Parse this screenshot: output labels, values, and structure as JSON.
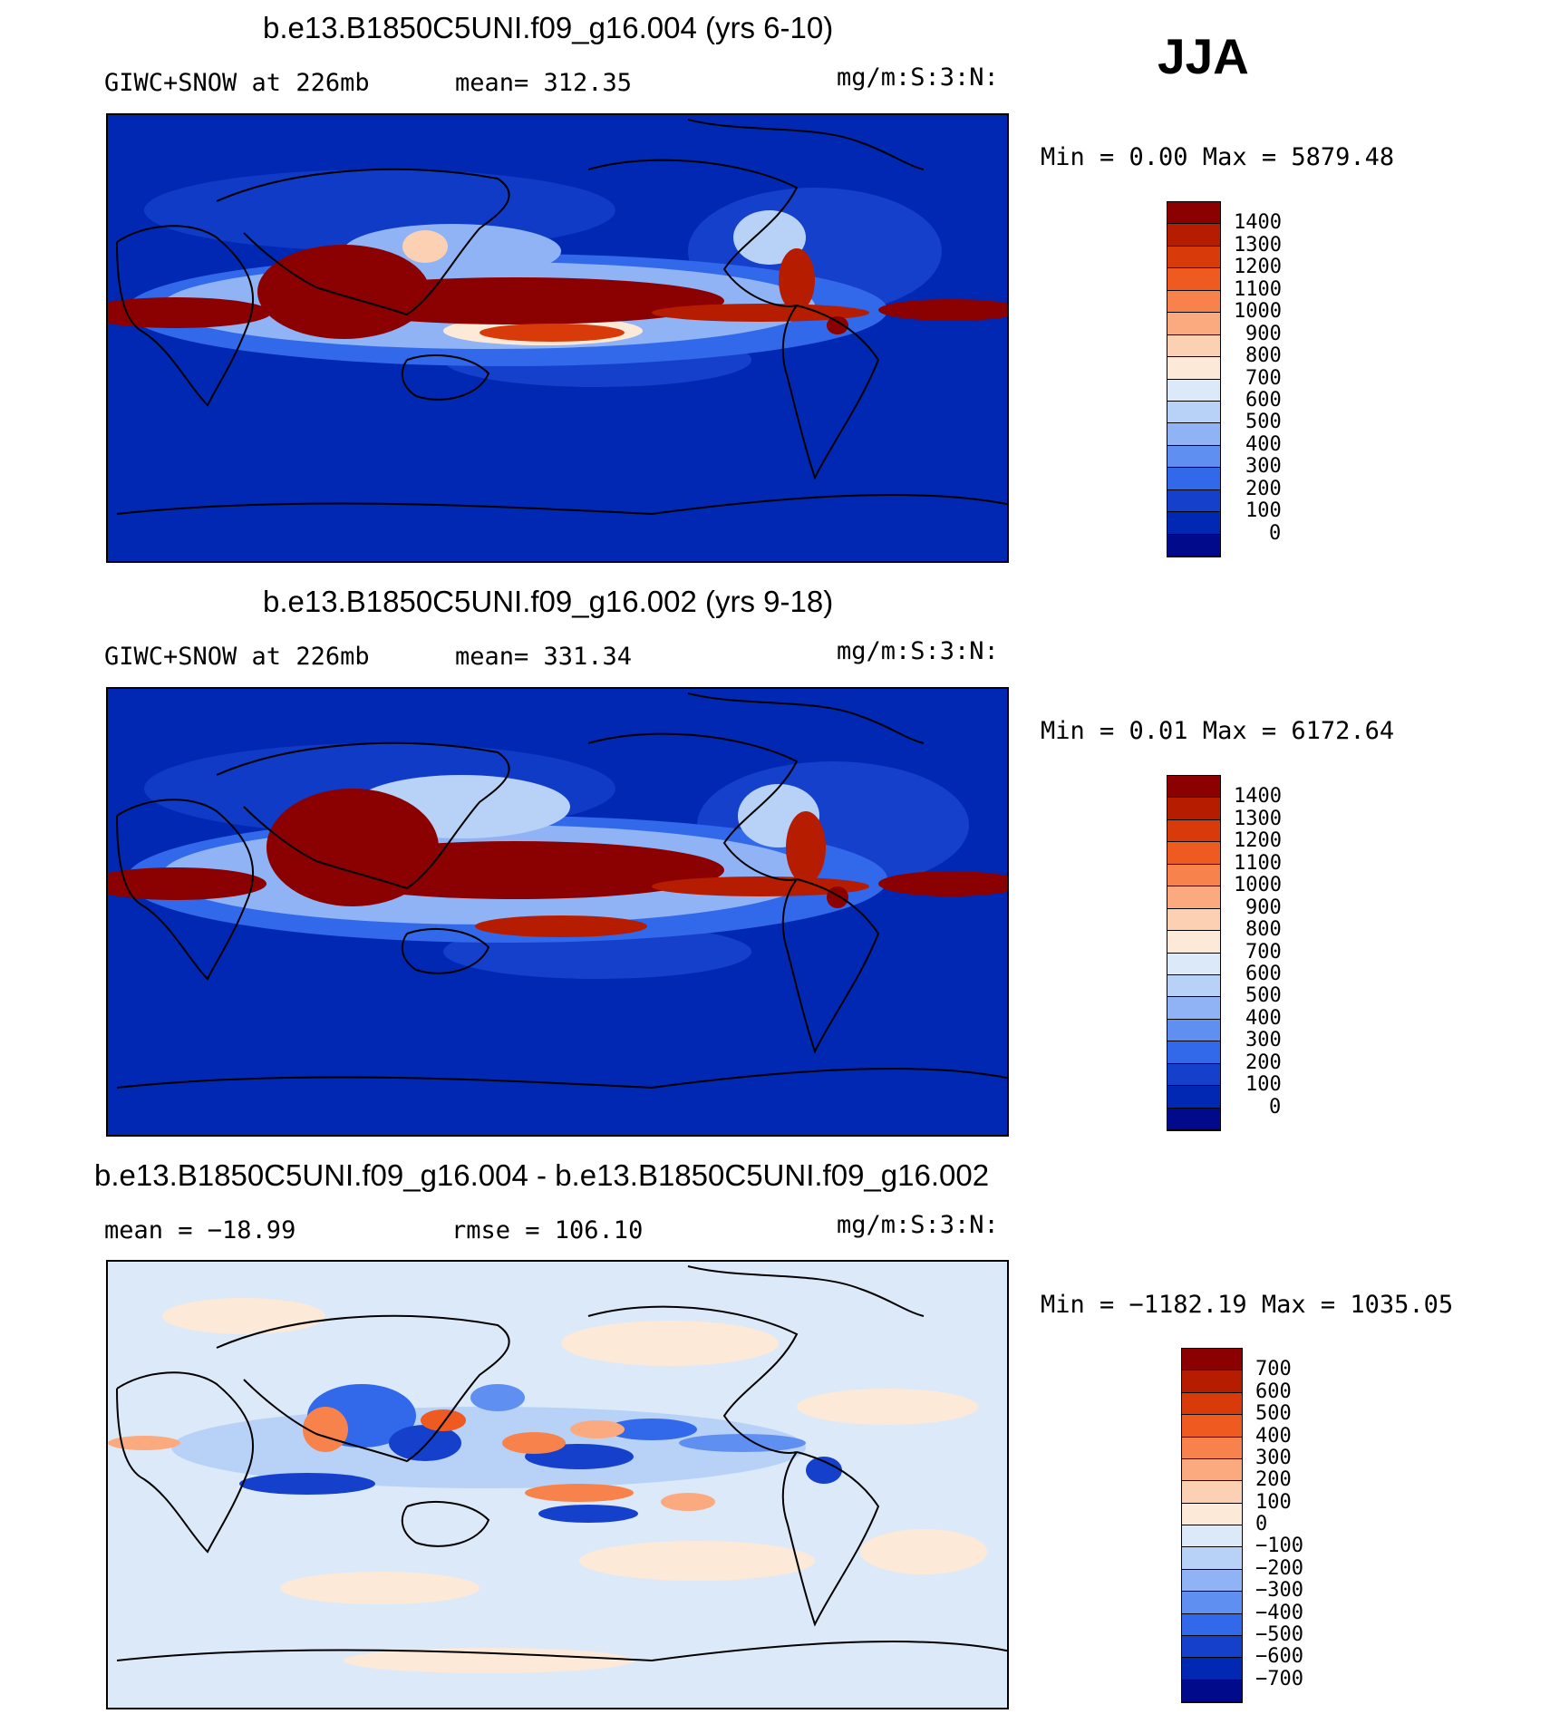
{
  "season": "JJA",
  "panels": [
    {
      "id": "top",
      "title": "b.e13.B1850C5UNI.f09_g16.004 (yrs 6-10)",
      "left_label": "GIWC+SNOW at 226mb",
      "mid_label": "mean= 312.35",
      "units": "mg/m:S:3:N:",
      "minmax": "Min =    0.00 Max = 5879.48",
      "levels": [
        "1400",
        "1300",
        "1200",
        "1100",
        "1000",
        "900",
        "800",
        "700",
        "600",
        "500",
        "400",
        "300",
        "200",
        "100",
        "0"
      ],
      "colors": [
        "#8b0000",
        "#b51c00",
        "#d93a0a",
        "#ee5a20",
        "#f7824b",
        "#fbaa80",
        "#fcd0b2",
        "#fde9d8",
        "#dce9f8",
        "#b7d1f7",
        "#8fb3f5",
        "#5f8ff0",
        "#3269ea",
        "#1440cc",
        "#0028b3",
        "#000a8a"
      ]
    },
    {
      "id": "middle",
      "title": "b.e13.B1850C5UNI.f09_g16.002 (yrs 9-18)",
      "left_label": "GIWC+SNOW at 226mb",
      "mid_label": "mean= 331.34",
      "units": "mg/m:S:3:N:",
      "minmax": "Min =    0.01 Max = 6172.64",
      "levels": [
        "1400",
        "1300",
        "1200",
        "1100",
        "1000",
        "900",
        "800",
        "700",
        "600",
        "500",
        "400",
        "300",
        "200",
        "100",
        "0"
      ],
      "colors": [
        "#8b0000",
        "#b51c00",
        "#d93a0a",
        "#ee5a20",
        "#f7824b",
        "#fbaa80",
        "#fcd0b2",
        "#fde9d8",
        "#dce9f8",
        "#b7d1f7",
        "#8fb3f5",
        "#5f8ff0",
        "#3269ea",
        "#1440cc",
        "#0028b3",
        "#000a8a"
      ]
    },
    {
      "id": "difference",
      "title": "b.e13.B1850C5UNI.f09_g16.004 - b.e13.B1850C5UNI.f09_g16.002",
      "left_label": "mean = −18.99",
      "mid_label": "rmse = 106.10",
      "units": "mg/m:S:3:N:",
      "minmax": "Min = −1182.19 Max = 1035.05",
      "levels": [
        "700",
        "600",
        "500",
        "400",
        "300",
        "200",
        "100",
        "0",
        "−100",
        "−200",
        "−300",
        "−400",
        "−500",
        "−600",
        "−700"
      ],
      "colors": [
        "#8b0000",
        "#b51c00",
        "#d93a0a",
        "#ee5a20",
        "#f7824b",
        "#fbaa80",
        "#fcd0b2",
        "#fde9d8",
        "#dce9f8",
        "#b7d1f7",
        "#8fb3f5",
        "#5f8ff0",
        "#3269ea",
        "#1440cc",
        "#0028b3",
        "#000a8a"
      ]
    }
  ]
}
